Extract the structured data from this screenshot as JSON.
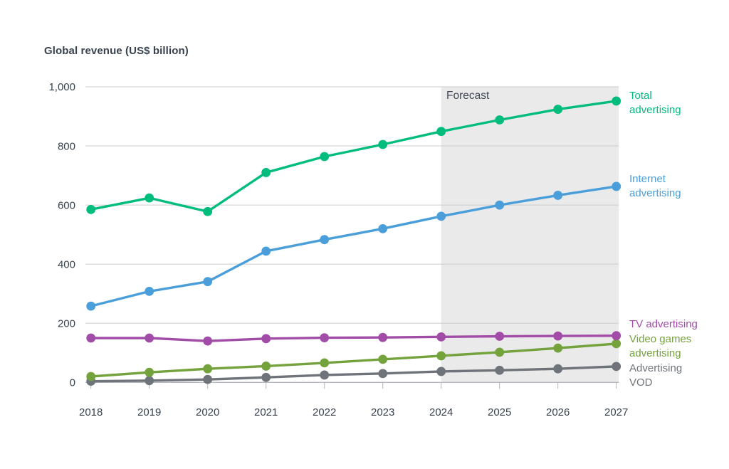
{
  "page": {
    "background_color": "#ffffff"
  },
  "chart_data": {
    "type": "line",
    "title": "Global revenue (US$ billion)",
    "forecast_label": "Forecast",
    "forecast_start_year": 2024,
    "x": [
      2018,
      2019,
      2020,
      2021,
      2022,
      2023,
      2024,
      2025,
      2026,
      2027
    ],
    "ylim": [
      0,
      1000
    ],
    "y_axis": {
      "tick_labels": [
        "1,000",
        "800",
        "600",
        "400",
        "200",
        "0"
      ],
      "tick_values": [
        1000,
        800,
        600,
        400,
        200,
        0
      ]
    },
    "grid": "horizontal",
    "legend_position": "right-annotations",
    "colors": {
      "axis_text": "#37424d",
      "forecast_text": "#3d4752",
      "gridline": "#cbcccd",
      "axis_line": "#b3b7bb",
      "forecast_band": "#eaeaea"
    },
    "series": [
      {
        "name": "Total advertising",
        "legend": "Total\nadvertising",
        "color": "#00bc7d",
        "values": [
          585,
          624,
          578,
          710,
          764,
          805,
          849,
          888,
          924,
          952
        ]
      },
      {
        "name": "Internet advertising",
        "legend": "Internet\nadvertising",
        "color": "#4a9eda",
        "values": [
          258,
          308,
          341,
          444,
          483,
          520,
          562,
          600,
          633,
          663
        ]
      },
      {
        "name": "TV advertising",
        "legend": "TV advertising",
        "color": "#a14da8",
        "values": [
          150,
          150,
          140,
          148,
          151,
          152,
          154,
          156,
          157,
          158
        ]
      },
      {
        "name": "Video games advertising",
        "legend": "Video games\nadvertising",
        "color": "#74a23c",
        "values": [
          20,
          34,
          46,
          55,
          66,
          78,
          90,
          102,
          116,
          131
        ]
      },
      {
        "name": "Advertising VOD",
        "legend": "Advertising\nVOD",
        "color": "#6f747a",
        "values": [
          4,
          6,
          10,
          17,
          25,
          30,
          37,
          41,
          46,
          54
        ]
      }
    ]
  }
}
